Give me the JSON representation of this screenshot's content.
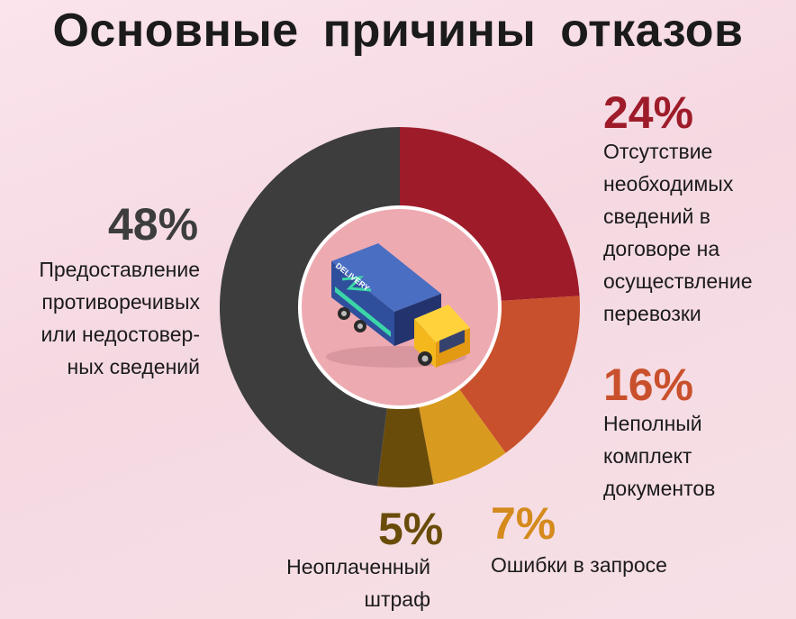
{
  "title": "Основные причины   отказов",
  "colors": {
    "s48": "#3d3d3d",
    "s24": "#9e1c2a",
    "s16": "#c9502c",
    "s7": "#d99a20",
    "s5": "#6a4c0a",
    "center": "#eeaab1"
  },
  "icons": {
    "center": "delivery-truck-icon"
  },
  "chart_data": {
    "type": "pie",
    "title": "Основные причины   отказов",
    "slices": [
      {
        "label": "Отсутствие необходимых сведений в договоре на осуществление перевозки",
        "value": 24,
        "display": "24%",
        "color": "#9e1c2a"
      },
      {
        "label": "Неполный комплект документов",
        "value": 16,
        "display": "16%",
        "color": "#c9502c"
      },
      {
        "label": "Ошибки в запросе",
        "value": 7,
        "display": "7%",
        "color": "#d99a20"
      },
      {
        "label": "Неоплаченный штраф",
        "value": 5,
        "display": "5%",
        "color": "#6a4c0a"
      },
      {
        "label": "Предоставление противоречивых или недостоверных сведений",
        "value": 48,
        "display": "48%",
        "color": "#3d3d3d"
      }
    ]
  },
  "labels": {
    "s48": {
      "pct": "48%",
      "lines": [
        "Предоставление",
        "противоречивых",
        "или недостовер-",
        "ных сведений"
      ]
    },
    "s24": {
      "pct": "24%",
      "lines": [
        "Отсутствие",
        "необходимых",
        "сведений в",
        "договоре на",
        "осуществление",
        "перевозки"
      ]
    },
    "s16": {
      "pct": "16%",
      "lines": [
        "Неполный",
        "комплект",
        "документов"
      ]
    },
    "s7": {
      "pct": "7%",
      "lines": [
        "Ошибки в запросе"
      ]
    },
    "s5": {
      "pct": "5%",
      "lines": [
        "Неоплаченный",
        "штраф"
      ]
    },
    "truck_text": "DELIVERY"
  }
}
